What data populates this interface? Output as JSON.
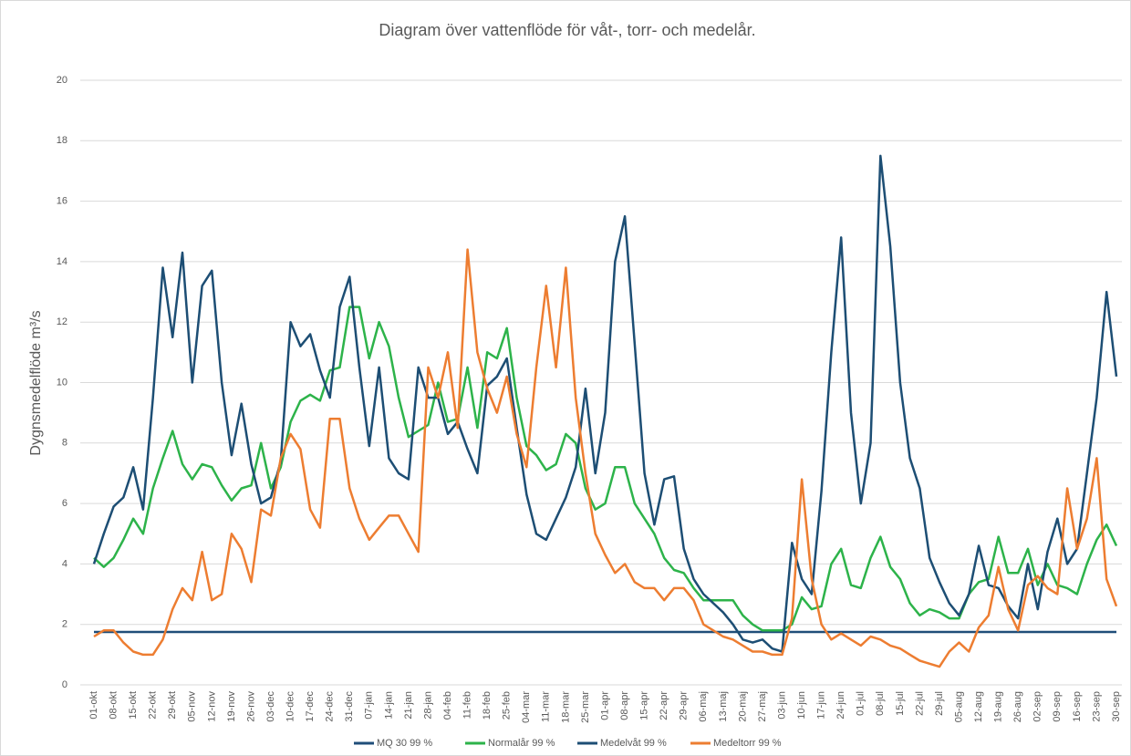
{
  "chart_data": {
    "type": "line",
    "title": "Diagram över vattenflöde för våt-, torr- och medelår.",
    "y_label": "Dygnsmedelflöde m³/s",
    "categories": [
      "01-okt",
      null,
      "08-okt",
      null,
      "15-okt",
      null,
      "22-okt",
      null,
      "29-okt",
      null,
      "05-nov",
      null,
      "12-nov",
      null,
      "19-nov",
      null,
      "26-nov",
      null,
      "03-dec",
      null,
      "10-dec",
      null,
      "17-dec",
      null,
      "24-dec",
      null,
      "31-dec",
      null,
      "07-jan",
      null,
      "14-jan",
      null,
      "21-jan",
      null,
      "28-jan",
      null,
      "04-feb",
      null,
      "11-feb",
      null,
      "18-feb",
      null,
      "25-feb",
      null,
      "04-mar",
      null,
      "11-mar",
      null,
      "18-mar",
      null,
      "25-mar",
      null,
      "01-apr",
      null,
      "08-apr",
      null,
      "15-apr",
      null,
      "22-apr",
      null,
      "29-apr",
      null,
      "06-maj",
      null,
      "13-maj",
      null,
      "20-maj",
      null,
      "27-maj",
      null,
      "03-jun",
      null,
      "10-jun",
      null,
      "17-jun",
      null,
      "24-jun",
      null,
      "01-jul",
      null,
      "08-jul",
      null,
      "15-jul",
      null,
      "22-jul",
      null,
      "29-jul",
      null,
      "05-aug",
      null,
      "12-aug",
      null,
      "19-aug",
      null,
      "26-aug",
      null,
      "02-sep",
      null,
      "09-sep",
      null,
      "16-sep",
      null,
      "23-sep",
      null,
      "30-sep"
    ],
    "series": [
      {
        "name": "MQ 30 99 %",
        "color": "#1f4e79",
        "values": [
          1.75,
          1.75,
          1.75,
          1.75,
          1.75,
          1.75,
          1.75,
          1.75,
          1.75,
          1.75,
          1.75,
          1.75,
          1.75,
          1.75,
          1.75,
          1.75,
          1.75,
          1.75,
          1.75,
          1.75,
          1.75,
          1.75,
          1.75,
          1.75,
          1.75,
          1.75,
          1.75,
          1.75,
          1.75,
          1.75,
          1.75,
          1.75,
          1.75,
          1.75,
          1.75,
          1.75,
          1.75,
          1.75,
          1.75,
          1.75,
          1.75,
          1.75,
          1.75,
          1.75,
          1.75,
          1.75,
          1.75,
          1.75,
          1.75,
          1.75,
          1.75,
          1.75,
          1.75,
          1.75,
          1.75,
          1.75,
          1.75,
          1.75,
          1.75,
          1.75,
          1.75,
          1.75,
          1.75,
          1.75,
          1.75,
          1.75,
          1.75,
          1.75,
          1.75,
          1.75,
          1.75,
          1.75,
          1.75,
          1.75,
          1.75,
          1.75,
          1.75,
          1.75,
          1.75,
          1.75,
          1.75,
          1.75,
          1.75,
          1.75,
          1.75,
          1.75,
          1.75,
          1.75,
          1.75,
          1.75,
          1.75,
          1.75,
          1.75,
          1.75,
          1.75,
          1.75,
          1.75,
          1.75,
          1.75,
          1.75,
          1.75,
          1.75,
          1.75,
          1.75,
          1.75
        ]
      },
      {
        "name": "Normalår 99 %",
        "color": "#2db34a",
        "values": [
          4.2,
          3.9,
          4.2,
          4.8,
          5.5,
          5.0,
          6.5,
          7.5,
          8.4,
          7.3,
          6.8,
          7.3,
          7.2,
          6.6,
          6.1,
          6.5,
          6.6,
          8.0,
          6.5,
          7.2,
          8.7,
          9.4,
          9.6,
          9.4,
          10.4,
          10.5,
          12.5,
          12.5,
          10.8,
          12.0,
          11.2,
          9.5,
          8.2,
          8.4,
          8.6,
          10.0,
          8.7,
          8.8,
          10.5,
          8.5,
          11.0,
          10.8,
          11.8,
          9.5,
          7.9,
          7.6,
          7.1,
          7.3,
          8.3,
          8.0,
          6.5,
          5.8,
          6.0,
          7.2,
          7.2,
          6.0,
          5.5,
          5.0,
          4.2,
          3.8,
          3.7,
          3.2,
          2.8,
          2.8,
          2.8,
          2.8,
          2.3,
          2.0,
          1.8,
          1.8,
          1.8,
          2.0,
          2.9,
          2.5,
          2.6,
          4.0,
          4.5,
          3.3,
          3.2,
          4.2,
          4.9,
          3.9,
          3.5,
          2.7,
          2.3,
          2.5,
          2.4,
          2.2,
          2.2,
          3.0,
          3.4,
          3.5,
          4.9,
          3.7,
          3.7,
          4.5,
          3.3,
          4.0,
          3.3,
          3.2,
          3.0,
          4.0,
          4.8,
          5.3,
          4.6
        ]
      },
      {
        "name": "Medelvåt 99 %",
        "color": "#1d4e74",
        "values": [
          4.0,
          5.0,
          5.9,
          6.2,
          7.2,
          5.8,
          9.5,
          13.8,
          11.5,
          14.3,
          10.0,
          13.2,
          13.7,
          10.0,
          7.6,
          9.3,
          7.3,
          6.0,
          6.2,
          7.4,
          12.0,
          11.2,
          11.6,
          10.4,
          9.5,
          12.5,
          13.5,
          10.5,
          7.9,
          10.5,
          7.5,
          7.0,
          6.8,
          10.5,
          9.5,
          9.5,
          8.3,
          8.7,
          7.8,
          7.0,
          9.9,
          10.2,
          10.8,
          8.5,
          6.3,
          5.0,
          4.8,
          5.5,
          6.2,
          7.2,
          9.8,
          7.0,
          9.0,
          14.0,
          15.5,
          11.3,
          7.0,
          5.3,
          6.8,
          6.9,
          4.5,
          3.5,
          3.0,
          2.7,
          2.4,
          2.0,
          1.5,
          1.4,
          1.5,
          1.2,
          1.1,
          4.7,
          3.5,
          3.0,
          6.4,
          11.0,
          14.8,
          9.0,
          6.0,
          8.0,
          17.5,
          14.5,
          10.0,
          7.5,
          6.5,
          4.2,
          3.4,
          2.7,
          2.3,
          3.0,
          4.6,
          3.3,
          3.2,
          2.6,
          2.2,
          4.0,
          2.5,
          4.4,
          5.5,
          4.0,
          4.5,
          7.0,
          9.5,
          13.0,
          10.2
        ]
      },
      {
        "name": "Medeltorr 99 %",
        "color": "#ed7d31",
        "values": [
          1.6,
          1.8,
          1.8,
          1.4,
          1.1,
          1.0,
          1.0,
          1.5,
          2.5,
          3.2,
          2.8,
          4.4,
          2.8,
          3.0,
          5.0,
          4.5,
          3.4,
          5.8,
          5.6,
          7.5,
          8.3,
          7.8,
          5.8,
          5.2,
          8.8,
          8.8,
          6.5,
          5.5,
          4.8,
          5.2,
          5.6,
          5.6,
          5.0,
          4.4,
          10.5,
          9.5,
          11.0,
          8.5,
          14.4,
          11.0,
          9.8,
          9.0,
          10.2,
          8.3,
          7.2,
          10.5,
          13.2,
          10.5,
          13.8,
          9.5,
          7.0,
          5.0,
          4.3,
          3.7,
          4.0,
          3.4,
          3.2,
          3.2,
          2.8,
          3.2,
          3.2,
          2.8,
          2.0,
          1.8,
          1.6,
          1.5,
          1.3,
          1.1,
          1.1,
          1.0,
          1.0,
          2.2,
          6.8,
          3.5,
          2.0,
          1.5,
          1.7,
          1.5,
          1.3,
          1.6,
          1.5,
          1.3,
          1.2,
          1.0,
          0.8,
          0.7,
          0.6,
          1.1,
          1.4,
          1.1,
          1.9,
          2.3,
          3.9,
          2.5,
          1.8,
          3.3,
          3.6,
          3.2,
          3.0,
          6.5,
          4.5,
          5.5,
          7.5,
          3.5,
          2.6
        ]
      }
    ],
    "ylim": [
      0,
      20
    ],
    "yticks": [
      0,
      2,
      4,
      6,
      8,
      10,
      12,
      14,
      16,
      18,
      20
    ],
    "grid": true
  }
}
